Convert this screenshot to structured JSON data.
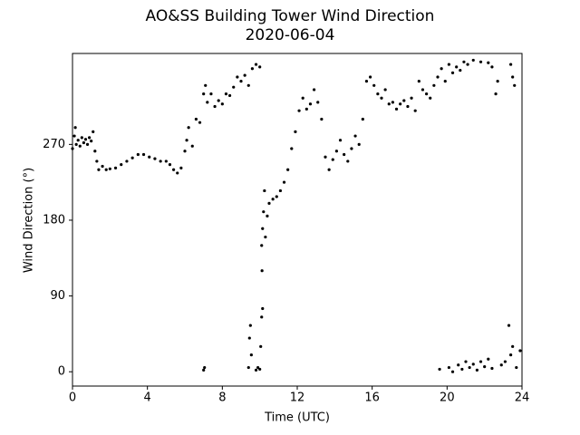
{
  "chart_data": {
    "type": "scatter",
    "title": "AO&SS Building Tower Wind Direction",
    "subtitle": "2020-06-04",
    "x_label": "Time (UTC)",
    "y_label": "Wind Direction (°)",
    "color": "#000000",
    "xlim": [
      0,
      24
    ],
    "xticks": [
      0,
      4,
      8,
      12,
      16,
      20,
      24
    ],
    "ylim": [
      -17,
      378
    ],
    "yticks": [
      0,
      90,
      180,
      270
    ],
    "x": [
      0,
      0.1,
      0.15,
      0.2,
      0.3,
      0.4,
      0.5,
      0.6,
      0.7,
      0.8,
      0.9,
      1.0,
      1.1,
      1.2,
      1.3,
      1.4,
      1.6,
      1.8,
      2.0,
      2.3,
      2.6,
      2.9,
      3.2,
      3.5,
      3.8,
      4.1,
      4.4,
      4.7,
      5.0,
      5.2,
      5.4,
      5.6,
      5.8,
      6.0,
      6.1,
      6.2,
      6.4,
      6.6,
      6.8,
      7.0,
      7.1,
      7.2,
      7.4,
      7.6,
      7.8,
      8.0,
      8.2,
      8.4,
      8.6,
      8.8,
      9.0,
      9.2,
      9.4,
      9.6,
      9.8,
      10.0,
      10.1,
      10.15,
      10.2,
      10.25,
      10.3,
      10.4,
      10.5,
      10.7,
      10.9,
      11.1,
      11.3,
      11.5,
      11.7,
      11.9,
      12.1,
      12.3,
      12.5,
      12.7,
      12.9,
      13.1,
      13.3,
      13.5,
      13.7,
      13.9,
      14.1,
      14.3,
      14.5,
      14.7,
      14.9,
      15.1,
      15.3,
      15.5,
      15.7,
      15.9,
      16.1,
      16.3,
      16.5,
      16.7,
      16.9,
      17.1,
      17.3,
      17.5,
      17.7,
      17.9,
      18.1,
      18.3,
      18.5,
      18.7,
      18.9,
      19.1,
      19.3,
      19.5,
      19.7,
      19.9,
      20.1,
      20.3,
      20.5,
      20.7,
      20.9,
      21.1,
      21.4,
      21.8,
      22.2,
      22.4,
      22.6,
      22.7,
      23.4,
      23.5,
      23.6,
      7.0,
      7.05,
      9.4,
      9.45,
      9.5,
      9.55,
      9.8,
      9.9,
      10.0,
      10.05,
      10.1,
      10.12,
      10.15,
      19.6,
      20.1,
      20.3,
      20.6,
      20.8,
      21.0,
      21.2,
      21.4,
      21.6,
      21.8,
      22.0,
      22.2,
      22.4,
      22.9,
      23.1,
      23.3,
      23.4,
      23.5,
      23.7,
      23.9
    ],
    "values": [
      265,
      280,
      290,
      270,
      275,
      268,
      278,
      272,
      276,
      270,
      278,
      274,
      285,
      262,
      250,
      240,
      244,
      240,
      241,
      242,
      246,
      250,
      254,
      258,
      258,
      255,
      253,
      250,
      250,
      246,
      240,
      236,
      242,
      262,
      275,
      290,
      268,
      300,
      296,
      330,
      340,
      320,
      330,
      315,
      322,
      318,
      330,
      328,
      338,
      350,
      345,
      352,
      340,
      360,
      365,
      362,
      150,
      170,
      190,
      215,
      160,
      185,
      200,
      205,
      208,
      215,
      225,
      240,
      265,
      285,
      310,
      325,
      312,
      318,
      335,
      320,
      300,
      255,
      240,
      252,
      262,
      275,
      258,
      250,
      265,
      280,
      270,
      300,
      345,
      350,
      340,
      330,
      325,
      335,
      318,
      320,
      312,
      318,
      322,
      315,
      325,
      310,
      345,
      335,
      330,
      325,
      340,
      350,
      360,
      345,
      365,
      355,
      362,
      358,
      368,
      365,
      370,
      368,
      367,
      362,
      330,
      345,
      365,
      350,
      340,
      2,
      5,
      5,
      40,
      55,
      20,
      2,
      5,
      3,
      30,
      65,
      120,
      75,
      3,
      5,
      0,
      8,
      3,
      12,
      5,
      9,
      2,
      12,
      6,
      15,
      4,
      8,
      12,
      55,
      20,
      30,
      5,
      25
    ]
  }
}
